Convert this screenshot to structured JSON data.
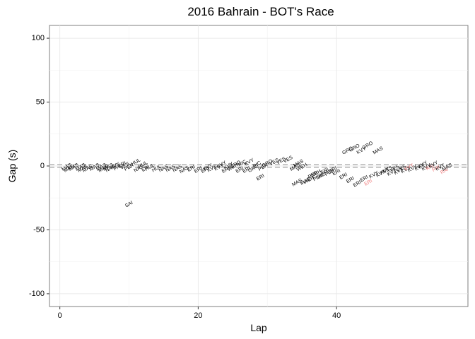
{
  "chart_data": {
    "type": "scatter",
    "title": "2016 Bahrain - BOT's Race",
    "xlabel": "Lap",
    "ylabel": "Gap (s)",
    "xlim": [
      -1.5,
      59
    ],
    "ylim": [
      -110,
      110
    ],
    "x_ticks": [
      0,
      20,
      40
    ],
    "y_ticks": [
      -100,
      -50,
      0,
      50,
      100
    ],
    "grid": true,
    "reference_lines": [
      {
        "y": 1,
        "style": "dashed",
        "color": "#b8b8b8"
      },
      {
        "y": -1,
        "style": "dashed",
        "color": "#b8b8b8"
      }
    ],
    "colors": {
      "normal": "#000000",
      "highlight": "#f08080"
    },
    "points": [
      {
        "x": 1,
        "y": -1,
        "label": "MAS"
      },
      {
        "x": 1.3,
        "y": -2,
        "label": "MAS"
      },
      {
        "x": 2,
        "y": -1,
        "label": "MAS"
      },
      {
        "x": 3,
        "y": -1,
        "label": "MAS"
      },
      {
        "x": 3.3,
        "y": -2,
        "label": "MAS"
      },
      {
        "x": 4,
        "y": -2,
        "label": "MAS"
      },
      {
        "x": 5,
        "y": -1,
        "label": "MAS"
      },
      {
        "x": 6,
        "y": -1,
        "label": "MAS"
      },
      {
        "x": 6.3,
        "y": -2,
        "label": "MAS"
      },
      {
        "x": 7,
        "y": -1,
        "label": "MAS"
      },
      {
        "x": 7.3,
        "y": -2,
        "label": "NAS"
      },
      {
        "x": 8,
        "y": 0,
        "label": "KVY"
      },
      {
        "x": 8.4,
        "y": -1,
        "label": "PAL"
      },
      {
        "x": 9,
        "y": 1,
        "label": "ERI"
      },
      {
        "x": 9.4,
        "y": 0,
        "label": "VES"
      },
      {
        "x": 10,
        "y": -1,
        "label": "PER"
      },
      {
        "x": 10,
        "y": -30,
        "label": "SAI"
      },
      {
        "x": 11,
        "y": 3,
        "label": "HUL"
      },
      {
        "x": 11.4,
        "y": -2,
        "label": "NAS"
      },
      {
        "x": 12,
        "y": 1,
        "label": "HUL"
      },
      {
        "x": 12.4,
        "y": -2,
        "label": "ERI"
      },
      {
        "x": 13,
        "y": -1,
        "label": "HUL"
      },
      {
        "x": 14,
        "y": -2,
        "label": "HUL"
      },
      {
        "x": 15,
        "y": -2,
        "label": "NAS"
      },
      {
        "x": 16,
        "y": -2,
        "label": "NAS"
      },
      {
        "x": 17,
        "y": -2,
        "label": "NAS"
      },
      {
        "x": 18,
        "y": -3,
        "label": "NAS"
      },
      {
        "x": 19,
        "y": -2,
        "label": "ERI"
      },
      {
        "x": 20,
        "y": -3,
        "label": "ERI"
      },
      {
        "x": 21,
        "y": -3,
        "label": "ERI"
      },
      {
        "x": 21.4,
        "y": -1,
        "label": "KVY"
      },
      {
        "x": 22,
        "y": -2,
        "label": "KVY"
      },
      {
        "x": 23,
        "y": -1,
        "label": "KVY"
      },
      {
        "x": 23.4,
        "y": 1,
        "label": "KVY"
      },
      {
        "x": 24,
        "y": -3,
        "label": "ERI"
      },
      {
        "x": 24.4,
        "y": 0,
        "label": "KVY"
      },
      {
        "x": 25,
        "y": -1,
        "label": "WEH"
      },
      {
        "x": 25.4,
        "y": 1,
        "label": "GRO"
      },
      {
        "x": 26,
        "y": -3,
        "label": "ERI"
      },
      {
        "x": 26.4,
        "y": 2,
        "label": "RIC"
      },
      {
        "x": 27,
        "y": -3,
        "label": "ERI"
      },
      {
        "x": 27.4,
        "y": 3,
        "label": "KVY"
      },
      {
        "x": 28,
        "y": -2,
        "label": "GRO"
      },
      {
        "x": 28.5,
        "y": 1,
        "label": "RIC"
      },
      {
        "x": 29,
        "y": -9,
        "label": "ERI"
      },
      {
        "x": 29.4,
        "y": -1,
        "label": "PER"
      },
      {
        "x": 30,
        "y": 2,
        "label": "GRO"
      },
      {
        "x": 31,
        "y": 3,
        "label": "VES"
      },
      {
        "x": 32,
        "y": 4,
        "label": "VES"
      },
      {
        "x": 33,
        "y": 5,
        "label": "VES"
      },
      {
        "x": 34,
        "y": -1,
        "label": "MAS"
      },
      {
        "x": 34.5,
        "y": 2,
        "label": "MAS"
      },
      {
        "x": 34.3,
        "y": -13,
        "label": "MAS"
      },
      {
        "x": 35,
        "y": -1,
        "label": "WEH"
      },
      {
        "x": 35.5,
        "y": -12,
        "label": "MAS"
      },
      {
        "x": 36,
        "y": -11,
        "label": "WEH"
      },
      {
        "x": 36.6,
        "y": -7,
        "label": "PER"
      },
      {
        "x": 37,
        "y": -6,
        "label": "WEH"
      },
      {
        "x": 37.3,
        "y": -9,
        "label": "PER"
      },
      {
        "x": 38,
        "y": -7,
        "label": "WEH"
      },
      {
        "x": 38.3,
        "y": -4,
        "label": "ERI"
      },
      {
        "x": 39,
        "y": -5,
        "label": "PER"
      },
      {
        "x": 39.5,
        "y": -3,
        "label": "ERI"
      },
      {
        "x": 40,
        "y": -5,
        "label": "ERI"
      },
      {
        "x": 41,
        "y": -8,
        "label": "ERI"
      },
      {
        "x": 41.6,
        "y": 12,
        "label": "GRO"
      },
      {
        "x": 42,
        "y": -11,
        "label": "ERI"
      },
      {
        "x": 42.6,
        "y": 14,
        "label": "GRO"
      },
      {
        "x": 43,
        "y": -14,
        "label": "ERI"
      },
      {
        "x": 43.6,
        "y": 12,
        "label": "KVY"
      },
      {
        "x": 44,
        "y": -10,
        "label": "ERI"
      },
      {
        "x": 44.5,
        "y": 16,
        "label": "GRO"
      },
      {
        "x": 44.6,
        "y": -13,
        "label": "ERI",
        "highlight": true
      },
      {
        "x": 45.4,
        "y": -7,
        "label": "KVY"
      },
      {
        "x": 46,
        "y": 12,
        "label": "MAS"
      },
      {
        "x": 46.4,
        "y": -6,
        "label": "KVY"
      },
      {
        "x": 47,
        "y": -4,
        "label": "KVY"
      },
      {
        "x": 47.4,
        "y": -3,
        "label": "VES"
      },
      {
        "x": 48,
        "y": -5,
        "label": "KVY"
      },
      {
        "x": 48.4,
        "y": -2,
        "label": "VES"
      },
      {
        "x": 49,
        "y": -4,
        "label": "KVY"
      },
      {
        "x": 49.4,
        "y": -2,
        "label": "VES"
      },
      {
        "x": 50,
        "y": -3,
        "label": "KVY"
      },
      {
        "x": 50.5,
        "y": -1,
        "label": "KVY",
        "highlight": true
      },
      {
        "x": 51,
        "y": -2,
        "label": "KVY"
      },
      {
        "x": 52,
        "y": -1,
        "label": "KVY"
      },
      {
        "x": 52.5,
        "y": 1,
        "label": "KVY"
      },
      {
        "x": 53,
        "y": -1,
        "label": "KVY"
      },
      {
        "x": 53.5,
        "y": -1,
        "label": "RAI",
        "highlight": true
      },
      {
        "x": 54,
        "y": 1,
        "label": "KVY"
      },
      {
        "x": 54.4,
        "y": -2,
        "label": "RAI",
        "highlight": true
      },
      {
        "x": 55,
        "y": -1,
        "label": "KVY"
      },
      {
        "x": 55.6,
        "y": -4,
        "label": "RAI",
        "highlight": true
      },
      {
        "x": 56,
        "y": -1,
        "label": "MAS"
      }
    ]
  }
}
